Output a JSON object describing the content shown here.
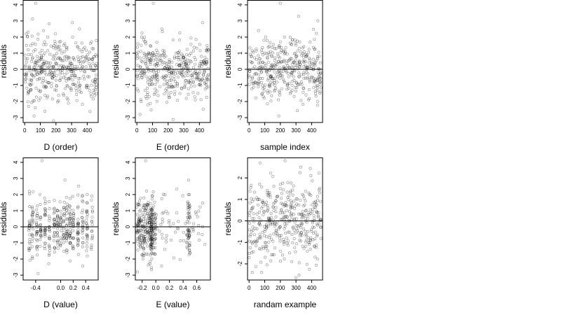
{
  "chart_data": [
    {
      "type": "scatter",
      "xlabel": "D (order)",
      "ylabel": "residuals",
      "xlim": [
        -10,
        470
      ],
      "ylim": [
        -3.3,
        4.3
      ],
      "xticks": [
        0,
        100,
        200,
        300,
        400
      ],
      "xtick_labels": [
        "0",
        "100",
        "200",
        "300",
        "400"
      ],
      "yticks": [
        -3,
        -2,
        -1,
        0,
        1,
        2,
        3,
        4
      ],
      "ytick_labels": [
        "-3",
        "-2",
        "-1",
        "0",
        "1",
        "2",
        "3",
        "4"
      ],
      "hline": 0,
      "n_points": 400,
      "points_note": "residuals vs observation order, roughly N(0,1), outlier near (70, 4.1)",
      "sample_points": [
        [
          70,
          4.1
        ],
        [
          10,
          2.2
        ],
        [
          120,
          2.4
        ],
        [
          305,
          2.9
        ],
        [
          350,
          2.5
        ],
        [
          60,
          -2.9
        ],
        [
          25,
          -2.3
        ],
        [
          280,
          -2.1
        ],
        [
          230,
          1.2
        ],
        [
          400,
          -1.0
        ]
      ]
    },
    {
      "type": "scatter",
      "xlabel": "E (order)",
      "ylabel": "residuals",
      "xlim": [
        -10,
        470
      ],
      "ylim": [
        -3.3,
        4.3
      ],
      "xticks": [
        0,
        100,
        200,
        300,
        400
      ],
      "xtick_labels": [
        "0",
        "100",
        "200",
        "300",
        "400"
      ],
      "yticks": [
        -3,
        -2,
        -1,
        0,
        1,
        2,
        3,
        4
      ],
      "ytick_labels": [
        "-3",
        "-2",
        "-1",
        "0",
        "1",
        "2",
        "3",
        "4"
      ],
      "hline": 0,
      "n_points": 400,
      "points_note": "residuals vs observation order, outlier near (105, 4.1)",
      "sample_points": [
        [
          105,
          4.1
        ],
        [
          30,
          2.0
        ],
        [
          160,
          2.5
        ],
        [
          420,
          2.9
        ],
        [
          20,
          -2.8
        ],
        [
          70,
          -2.2
        ],
        [
          370,
          -1.7
        ],
        [
          250,
          1.0
        ]
      ]
    },
    {
      "type": "scatter",
      "xlabel": "sample index",
      "ylabel": "residuals",
      "xlim": [
        -10,
        470
      ],
      "ylim": [
        -3.3,
        4.3
      ],
      "xticks": [
        0,
        100,
        200,
        300,
        400
      ],
      "xtick_labels": [
        "0",
        "100",
        "200",
        "300",
        "400"
      ],
      "yticks": [
        -3,
        -2,
        -1,
        0,
        1,
        2,
        3,
        4
      ],
      "ytick_labels": [
        "-3",
        "-2",
        "-1",
        "0",
        "1",
        "2",
        "3",
        "4"
      ],
      "hline": 0,
      "n_points": 400,
      "points_note": "residuals vs sample index, outlier near (200, 4.1)",
      "sample_points": [
        [
          200,
          4.1
        ],
        [
          60,
          2.4
        ],
        [
          440,
          3.0
        ],
        [
          190,
          -2.9
        ],
        [
          380,
          -1.9
        ],
        [
          300,
          1.5
        ]
      ]
    },
    {
      "type": "scatter",
      "xlabel": "D (value)",
      "ylabel": "residuals",
      "xlim": [
        -0.6,
        0.6
      ],
      "ylim": [
        -3.3,
        4.3
      ],
      "xticks": [
        -0.4,
        0.0,
        0.2,
        0.4
      ],
      "xtick_labels": [
        "-0.4",
        "0.0",
        "0.2",
        "0.4"
      ],
      "yticks": [
        -3,
        -2,
        -1,
        0,
        1,
        2,
        3,
        4
      ],
      "ytick_labels": [
        "-3",
        "-2",
        "-1",
        "0",
        "1",
        "2",
        "3",
        "4"
      ],
      "hline": 0,
      "n_points": 400,
      "points_note": "residuals vs D value, points in vertical columns, outlier near (-0.3, 4.1)",
      "sample_points": [
        [
          -0.3,
          4.1
        ],
        [
          0.07,
          2.9
        ],
        [
          -0.5,
          2.2
        ],
        [
          -0.36,
          -2.9
        ],
        [
          0.1,
          -1.6
        ],
        [
          0.5,
          1.9
        ]
      ]
    },
    {
      "type": "scatter",
      "xlabel": "E (value)",
      "ylabel": "residuals",
      "xlim": [
        -0.3,
        0.8
      ],
      "ylim": [
        -3.3,
        4.3
      ],
      "xticks": [
        -0.2,
        0.0,
        0.2,
        0.4,
        0.6
      ],
      "xtick_labels": [
        "-0.2",
        "0.0",
        "0.2",
        "0.4",
        "0.6"
      ],
      "yticks": [
        -3,
        -2,
        -1,
        0,
        1,
        2,
        3,
        4
      ],
      "ytick_labels": [
        "-3",
        "-2",
        "-1",
        "0",
        "1",
        "2",
        "3",
        "4"
      ],
      "hline": 0,
      "n_points": 400,
      "points_note": "residuals vs E value, dense near -0.25..0.0, columns near -0.05 and 0.5, outlier near (-0.15, 4.1)",
      "sample_points": [
        [
          -0.15,
          4.1
        ],
        [
          0.48,
          2.9
        ],
        [
          -0.27,
          -2.8
        ],
        [
          0.5,
          -1.6
        ],
        [
          0.72,
          -1.1
        ],
        [
          0.1,
          0.3
        ]
      ]
    },
    {
      "type": "scatter",
      "xlabel": "randam example",
      "ylabel": "residuals",
      "xlim": [
        -10,
        470
      ],
      "ylim": [
        -2.75,
        2.95
      ],
      "xticks": [
        0,
        100,
        200,
        300,
        400
      ],
      "xtick_labels": [
        "0",
        "100",
        "200",
        "300",
        "400"
      ],
      "yticks": [
        -2,
        -1,
        0,
        1,
        2
      ],
      "ytick_labels": [
        "-2",
        "-1",
        "0",
        "1",
        "2"
      ],
      "hline": 0,
      "n_points": 400,
      "points_note": "random normal example residuals vs index",
      "sample_points": [
        [
          70,
          2.7
        ],
        [
          230,
          2.8
        ],
        [
          330,
          2.5
        ],
        [
          20,
          -2.4
        ],
        [
          80,
          -2.4
        ],
        [
          200,
          1.5
        ],
        [
          420,
          -1.2
        ]
      ]
    }
  ]
}
